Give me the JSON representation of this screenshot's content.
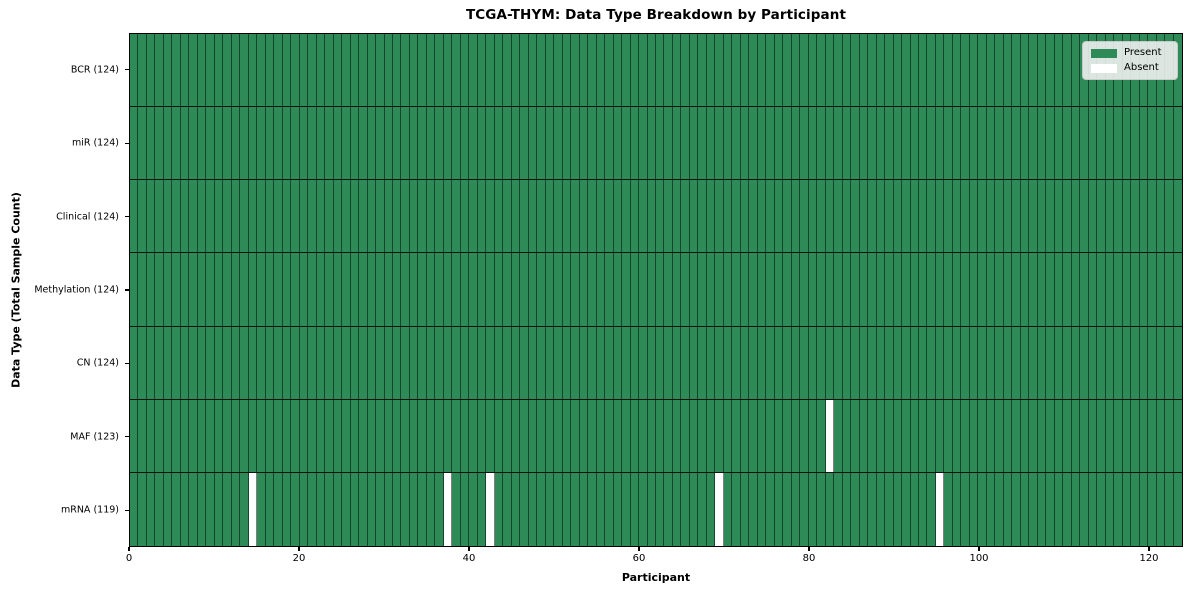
{
  "chart_data": {
    "type": "heatmap",
    "title": "TCGA-THYM: Data Type Breakdown by Participant",
    "xlabel": "Participant",
    "ylabel": "Data Type (Total Sample Count)",
    "n_participants": 124,
    "x_ticks": [
      0,
      20,
      40,
      60,
      80,
      100,
      120
    ],
    "x_range": [
      0,
      124
    ],
    "grid": "cell-edges",
    "rows": [
      {
        "label": "BCR (124)",
        "data_type": "BCR",
        "present_count": 124,
        "absent_participants": []
      },
      {
        "label": "miR (124)",
        "data_type": "miR",
        "present_count": 124,
        "absent_participants": []
      },
      {
        "label": "Clinical (124)",
        "data_type": "Clinical",
        "present_count": 124,
        "absent_participants": []
      },
      {
        "label": "Methylation (124)",
        "data_type": "Methylation",
        "present_count": 124,
        "absent_participants": []
      },
      {
        "label": "CN (124)",
        "data_type": "CN",
        "present_count": 124,
        "absent_participants": []
      },
      {
        "label": "MAF (123)",
        "data_type": "MAF",
        "present_count": 123,
        "absent_participants": [
          82
        ]
      },
      {
        "label": "mRNA (119)",
        "data_type": "mRNA",
        "present_count": 119,
        "absent_participants": [
          14,
          37,
          42,
          69,
          95
        ]
      }
    ],
    "legend": [
      {
        "label": "Present",
        "color": "#2e8b57"
      },
      {
        "label": "Absent",
        "color": "#ffffff"
      }
    ],
    "legend_position": "upper right",
    "colors": {
      "present": "#2e8b57",
      "absent": "#ffffff",
      "cell_edge": "rgba(0,0,0,0.5)",
      "row_edge": "rgba(0,0,0,0.85)",
      "legend_bg": "#f2f2f2",
      "legend_border": "#c9c9c9",
      "text": "#000000",
      "background": "#ffffff"
    }
  }
}
